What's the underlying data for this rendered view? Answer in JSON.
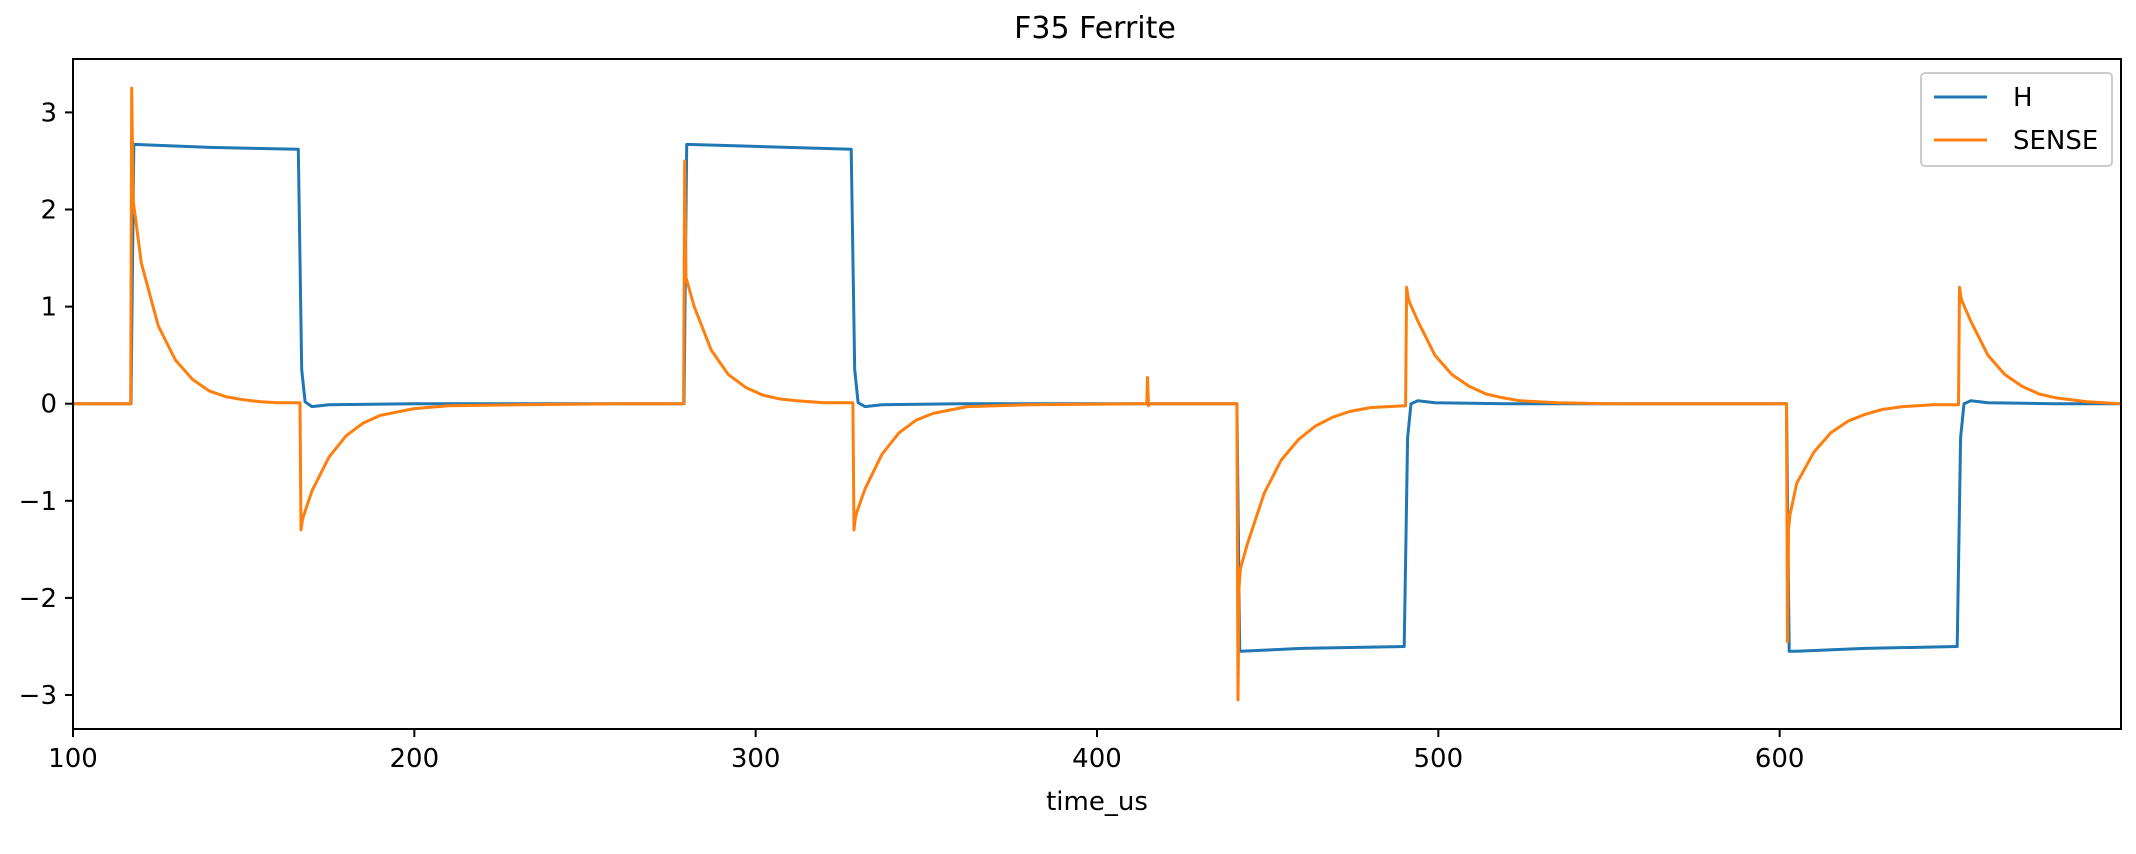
{
  "chart_data": {
    "type": "line",
    "title": "F35 Ferrite",
    "xlabel": "time_us",
    "ylabel": "",
    "xlim": [
      100,
      700
    ],
    "ylim": [
      -3.35,
      3.55
    ],
    "xticks": [
      100,
      200,
      300,
      400,
      500,
      600
    ],
    "xtick_labels": [
      "100",
      "200",
      "300",
      "400",
      "500",
      "600"
    ],
    "yticks": [
      -3,
      -2,
      -1,
      0,
      1,
      2,
      3
    ],
    "ytick_labels": [
      "−3",
      "−2",
      "−1",
      "0",
      "1",
      "2",
      "3"
    ],
    "grid": false,
    "legend": {
      "position": "top-right",
      "entries": [
        "H",
        "SENSE"
      ]
    },
    "series": [
      {
        "name": "H",
        "color": "#1f77b4",
        "x": [
          100,
          117,
          117.8,
          140,
          166,
          167,
          168,
          170,
          175,
          200,
          279,
          279.8,
          300,
          328,
          329,
          330,
          332,
          337,
          360,
          441,
          441.8,
          460,
          490,
          491,
          492,
          494,
          499,
          520,
          602,
          602.8,
          605,
          625,
          652,
          653,
          654,
          656,
          661,
          680,
          700
        ],
        "y": [
          0,
          0,
          2.67,
          2.64,
          2.62,
          0.35,
          0.02,
          -0.03,
          -0.01,
          0,
          0,
          2.67,
          2.65,
          2.62,
          0.35,
          0.01,
          -0.03,
          -0.01,
          0,
          0,
          -2.55,
          -2.52,
          -2.5,
          -0.35,
          0,
          0.03,
          0.01,
          0,
          0,
          -2.55,
          -2.55,
          -2.52,
          -2.5,
          -0.35,
          0,
          0.03,
          0.01,
          0,
          0
        ]
      },
      {
        "name": "SENSE",
        "color": "#ff7f0e",
        "x": [
          100,
          116.9,
          117.2,
          117.6,
          120,
          125,
          130,
          135,
          140,
          145,
          150,
          155,
          160,
          166.5,
          166.8,
          167.2,
          167.6,
          170,
          175,
          180,
          185,
          190,
          200,
          210,
          230,
          260,
          278.9,
          279.2,
          279.6,
          282,
          287,
          292,
          297,
          302,
          307,
          312,
          320,
          328.5,
          328.8,
          329.2,
          329.6,
          332,
          337,
          342,
          347,
          352,
          362,
          380,
          414.6,
          414.8,
          415.1,
          415.4,
          441,
          441.3,
          441.6,
          442,
          444,
          449,
          454,
          459,
          464,
          469,
          474,
          480,
          490.4,
          490.7,
          491.1,
          491.5,
          494,
          499,
          504,
          509,
          514,
          519,
          524,
          535,
          550,
          602,
          602.3,
          602.6,
          603,
          605,
          610,
          615,
          620,
          625,
          630,
          636,
          645,
          652.4,
          652.7,
          653.1,
          653.5,
          656,
          661,
          666,
          671,
          676,
          681,
          690,
          700
        ],
        "y": [
          0,
          0,
          3.25,
          2.1,
          1.45,
          0.8,
          0.45,
          0.25,
          0.13,
          0.07,
          0.04,
          0.02,
          0.01,
          0.01,
          -1.3,
          -1.2,
          -1.15,
          -0.9,
          -0.55,
          -0.33,
          -0.2,
          -0.12,
          -0.05,
          -0.02,
          -0.01,
          0,
          0,
          2.5,
          1.3,
          1.0,
          0.55,
          0.3,
          0.17,
          0.09,
          0.05,
          0.03,
          0.01,
          0.01,
          -1.3,
          -1.18,
          -1.12,
          -0.88,
          -0.52,
          -0.3,
          -0.17,
          -0.1,
          -0.03,
          -0.01,
          0,
          0.27,
          -0.02,
          0,
          0,
          -3.05,
          -1.9,
          -1.7,
          -1.45,
          -0.92,
          -0.58,
          -0.37,
          -0.23,
          -0.14,
          -0.08,
          -0.04,
          -0.02,
          1.2,
          1.1,
          1.05,
          0.85,
          0.5,
          0.3,
          0.18,
          0.1,
          0.06,
          0.03,
          0.01,
          0,
          0,
          -2.45,
          -1.3,
          -1.15,
          -0.82,
          -0.5,
          -0.3,
          -0.18,
          -0.11,
          -0.06,
          -0.03,
          -0.01,
          -0.01,
          1.2,
          1.1,
          1.05,
          0.85,
          0.5,
          0.3,
          0.18,
          0.1,
          0.06,
          0.02,
          0
        ]
      }
    ]
  }
}
